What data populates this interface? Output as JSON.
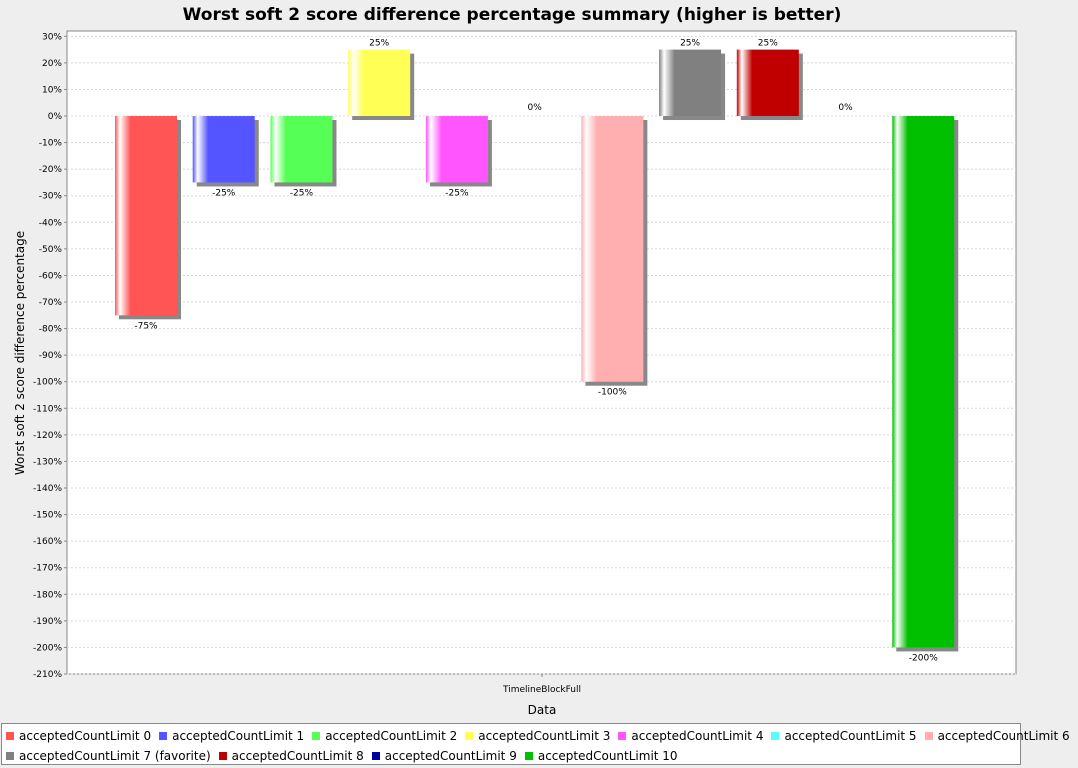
{
  "chart_data": {
    "type": "bar",
    "title": "Worst soft 2 score difference percentage summary (higher is better)",
    "xlabel": "Data",
    "ylabel": "Worst soft 2 score difference percentage",
    "categories": [
      "TimelineBlockFull"
    ],
    "ylim": [
      -210,
      32
    ],
    "ytick_step": 10,
    "grid": true,
    "legend_position": "bottom",
    "series": [
      {
        "name": "acceptedCountLimit 0",
        "values": [
          -75
        ],
        "label": "-75%",
        "color": "#ff5555"
      },
      {
        "name": "acceptedCountLimit 1",
        "values": [
          -25
        ],
        "label": "-25%",
        "color": "#5555ff"
      },
      {
        "name": "acceptedCountLimit 2",
        "values": [
          -25
        ],
        "label": "-25%",
        "color": "#55ff55"
      },
      {
        "name": "acceptedCountLimit 3",
        "values": [
          25
        ],
        "label": "25%",
        "color": "#ffff55"
      },
      {
        "name": "acceptedCountLimit 4",
        "values": [
          -25
        ],
        "label": "-25%",
        "color": "#ff55ff"
      },
      {
        "name": "acceptedCountLimit 5",
        "values": [
          0
        ],
        "label": "0%",
        "color": "#55ffff"
      },
      {
        "name": "acceptedCountLimit 6",
        "values": [
          -100
        ],
        "label": "-100%",
        "color": "#ffafaf"
      },
      {
        "name": "acceptedCountLimit 7 (favorite)",
        "values": [
          25
        ],
        "label": "25%",
        "color": "#808080"
      },
      {
        "name": "acceptedCountLimit 8",
        "values": [
          25
        ],
        "label": "25%",
        "color": "#c00000"
      },
      {
        "name": "acceptedCountLimit 9",
        "values": [
          0
        ],
        "label": "0%",
        "color": "#0000a0"
      },
      {
        "name": "acceptedCountLimit 10",
        "values": [
          -200
        ],
        "label": "-200%",
        "color": "#00c000"
      }
    ]
  }
}
